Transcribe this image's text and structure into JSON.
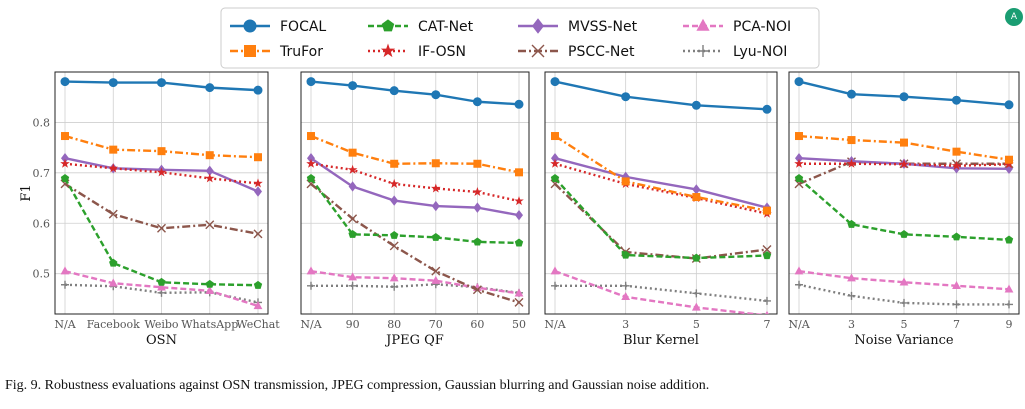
{
  "chart_data": {
    "type": "line",
    "ylabel": "F1",
    "ylim": [
      0.42,
      0.9
    ],
    "yticks": [
      0.5,
      0.6,
      0.7,
      0.8
    ],
    "ytick_labels": [
      "0.5",
      "0.6",
      "0.7",
      "0.8"
    ],
    "grid": true,
    "legend_position": "top-center",
    "series_styles": [
      {
        "name": "FOCAL",
        "color": "#1f77b4",
        "dash": "solid",
        "marker": "circle"
      },
      {
        "name": "TruFor",
        "color": "#ff7f0e",
        "dash": "dashdot",
        "marker": "square"
      },
      {
        "name": "CAT-Net",
        "color": "#2ca02c",
        "dash": "dashed",
        "marker": "pentagon"
      },
      {
        "name": "IF-OSN",
        "color": "#d62728",
        "dash": "dotted",
        "marker": "star"
      },
      {
        "name": "MVSS-Net",
        "color": "#9467bd",
        "dash": "solid",
        "marker": "diamond"
      },
      {
        "name": "PSCC-Net",
        "color": "#8c564b",
        "dash": "dashdot",
        "marker": "x"
      },
      {
        "name": "PCA-NOI",
        "color": "#e377c2",
        "dash": "dashed",
        "marker": "triangle"
      },
      {
        "name": "Lyu-NOI",
        "color": "#7f7f7f",
        "dash": "dotted",
        "marker": "plus"
      }
    ],
    "panels": [
      {
        "xlabel": "OSN",
        "categories": [
          "N/A",
          "Facebook",
          "Weibo",
          "WhatsApp",
          "WeChat"
        ],
        "series": [
          {
            "name": "FOCAL",
            "values": [
              0.881,
              0.879,
              0.879,
              0.869,
              0.864
            ]
          },
          {
            "name": "TruFor",
            "values": [
              0.773,
              0.746,
              0.743,
              0.735,
              0.731
            ]
          },
          {
            "name": "CAT-Net",
            "values": [
              0.689,
              0.521,
              0.483,
              0.479,
              0.477
            ]
          },
          {
            "name": "IF-OSN",
            "values": [
              0.718,
              0.709,
              0.701,
              0.689,
              0.679
            ]
          },
          {
            "name": "MVSS-Net",
            "values": [
              0.729,
              0.709,
              0.706,
              0.704,
              0.663
            ]
          },
          {
            "name": "PSCC-Net",
            "values": [
              0.678,
              0.618,
              0.59,
              0.597,
              0.579
            ]
          },
          {
            "name": "PCA-NOI",
            "values": [
              0.505,
              0.481,
              0.473,
              0.466,
              0.436
            ]
          },
          {
            "name": "Lyu-NOI",
            "values": [
              0.478,
              0.475,
              0.462,
              0.463,
              0.443
            ]
          }
        ]
      },
      {
        "xlabel": "JPEG QF",
        "categories": [
          "N/A",
          "90",
          "80",
          "70",
          "60",
          "50"
        ],
        "series": [
          {
            "name": "FOCAL",
            "values": [
              0.881,
              0.873,
              0.863,
              0.855,
              0.841,
              0.836
            ]
          },
          {
            "name": "TruFor",
            "values": [
              0.773,
              0.74,
              0.718,
              0.719,
              0.718,
              0.701
            ]
          },
          {
            "name": "CAT-Net",
            "values": [
              0.689,
              0.578,
              0.576,
              0.572,
              0.563,
              0.561
            ]
          },
          {
            "name": "IF-OSN",
            "values": [
              0.718,
              0.706,
              0.678,
              0.669,
              0.662,
              0.644
            ]
          },
          {
            "name": "MVSS-Net",
            "values": [
              0.729,
              0.673,
              0.645,
              0.634,
              0.631,
              0.616
            ]
          },
          {
            "name": "PSCC-Net",
            "values": [
              0.678,
              0.609,
              0.555,
              0.505,
              0.468,
              0.443
            ]
          },
          {
            "name": "PCA-NOI",
            "values": [
              0.505,
              0.493,
              0.491,
              0.486,
              0.472,
              0.461
            ]
          },
          {
            "name": "Lyu-NOI",
            "values": [
              0.476,
              0.476,
              0.474,
              0.479,
              0.473,
              0.462
            ]
          }
        ]
      },
      {
        "xlabel": "Blur Kernel",
        "categories": [
          "N/A",
          "3",
          "5",
          "7"
        ],
        "series": [
          {
            "name": "FOCAL",
            "values": [
              0.881,
              0.851,
              0.834,
              0.826
            ]
          },
          {
            "name": "TruFor",
            "values": [
              0.773,
              0.683,
              0.652,
              0.625
            ]
          },
          {
            "name": "CAT-Net",
            "values": [
              0.689,
              0.537,
              0.531,
              0.536
            ]
          },
          {
            "name": "IF-OSN",
            "values": [
              0.718,
              0.678,
              0.65,
              0.619
            ]
          },
          {
            "name": "MVSS-Net",
            "values": [
              0.729,
              0.692,
              0.667,
              0.631
            ]
          },
          {
            "name": "PSCC-Net",
            "values": [
              0.678,
              0.543,
              0.53,
              0.548
            ]
          },
          {
            "name": "PCA-NOI",
            "values": [
              0.505,
              0.454,
              0.433,
              0.417
            ]
          },
          {
            "name": "Lyu-NOI",
            "values": [
              0.476,
              0.476,
              0.461,
              0.446
            ]
          }
        ]
      },
      {
        "xlabel": "Noise Variance",
        "categories": [
          "N/A",
          "3",
          "5",
          "7",
          "9"
        ],
        "series": [
          {
            "name": "FOCAL",
            "values": [
              0.881,
              0.856,
              0.851,
              0.844,
              0.835
            ]
          },
          {
            "name": "TruFor",
            "values": [
              0.773,
              0.765,
              0.76,
              0.742,
              0.726
            ]
          },
          {
            "name": "CAT-Net",
            "values": [
              0.689,
              0.598,
              0.578,
              0.573,
              0.567
            ]
          },
          {
            "name": "IF-OSN",
            "values": [
              0.718,
              0.718,
              0.717,
              0.714,
              0.717
            ]
          },
          {
            "name": "MVSS-Net",
            "values": [
              0.729,
              0.723,
              0.718,
              0.709,
              0.708
            ]
          },
          {
            "name": "PSCC-Net",
            "values": [
              0.678,
              0.722,
              0.718,
              0.718,
              0.718
            ]
          },
          {
            "name": "PCA-NOI",
            "values": [
              0.505,
              0.491,
              0.483,
              0.476,
              0.469
            ]
          },
          {
            "name": "Lyu-NOI",
            "values": [
              0.478,
              0.456,
              0.442,
              0.439,
              0.439
            ]
          }
        ]
      }
    ]
  },
  "caption": "Fig. 9.  Robustness evaluations against OSN transmission, JPEG compression, Gaussian blurring and Gaussian noise addition.",
  "badge": {
    "text": "A",
    "color": "#1a9d72"
  }
}
